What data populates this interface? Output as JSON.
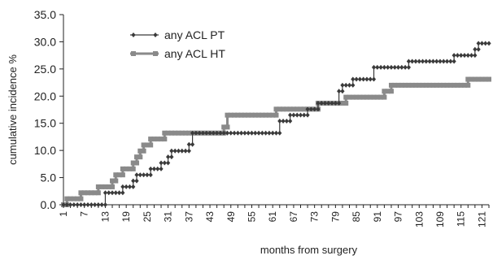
{
  "chart_data": {
    "type": "line",
    "title": "",
    "xlabel": "months from surgery",
    "ylabel": "cumulative incidence %",
    "xlim": [
      1,
      123
    ],
    "ylim": [
      0,
      35
    ],
    "yticks": [
      "0.0",
      "5.0",
      "10.0",
      "15.0",
      "20.0",
      "25.0",
      "30.0",
      "35.0"
    ],
    "xticks": [
      "1",
      "7",
      "13",
      "19",
      "25",
      "31",
      "37",
      "43",
      "49",
      "55",
      "61",
      "67",
      "73",
      "79",
      "85",
      "91",
      "97",
      "103",
      "109",
      "115",
      "121"
    ],
    "grid": false,
    "legend_position": "top-left",
    "series": [
      {
        "name": "any ACL PT",
        "color": "#3a3a3a",
        "marker": "diamond",
        "points": [
          [
            1,
            0.0
          ],
          [
            13,
            0.0
          ],
          [
            13,
            2.2
          ],
          [
            18,
            2.2
          ],
          [
            18,
            3.3
          ],
          [
            21,
            3.3
          ],
          [
            21,
            4.4
          ],
          [
            22,
            4.4
          ],
          [
            22,
            5.5
          ],
          [
            26,
            5.5
          ],
          [
            26,
            6.6
          ],
          [
            29,
            6.6
          ],
          [
            29,
            7.7
          ],
          [
            31,
            7.7
          ],
          [
            31,
            8.8
          ],
          [
            32,
            8.8
          ],
          [
            32,
            9.9
          ],
          [
            37,
            9.9
          ],
          [
            37,
            11.1
          ],
          [
            38,
            11.1
          ],
          [
            38,
            13.2
          ],
          [
            63,
            13.2
          ],
          [
            63,
            15.4
          ],
          [
            66,
            15.4
          ],
          [
            66,
            16.5
          ],
          [
            71,
            16.5
          ],
          [
            71,
            17.6
          ],
          [
            74,
            17.6
          ],
          [
            74,
            18.7
          ],
          [
            80,
            18.7
          ],
          [
            80,
            20.9
          ],
          [
            81,
            20.9
          ],
          [
            81,
            22.0
          ],
          [
            84,
            22.0
          ],
          [
            84,
            23.1
          ],
          [
            90,
            23.1
          ],
          [
            90,
            25.3
          ],
          [
            100,
            25.3
          ],
          [
            100,
            26.4
          ],
          [
            113,
            26.4
          ],
          [
            113,
            27.5
          ],
          [
            119,
            27.5
          ],
          [
            119,
            28.6
          ],
          [
            120,
            28.6
          ],
          [
            120,
            29.7
          ],
          [
            123,
            29.7
          ]
        ]
      },
      {
        "name": "any ACL HT",
        "color": "#8a8a8a",
        "marker": "square",
        "points": [
          [
            1,
            0.0
          ],
          [
            2,
            0.0
          ],
          [
            2,
            1.1
          ],
          [
            6,
            1.1
          ],
          [
            6,
            2.2
          ],
          [
            11,
            2.2
          ],
          [
            11,
            3.3
          ],
          [
            15,
            3.3
          ],
          [
            15,
            4.4
          ],
          [
            16,
            4.4
          ],
          [
            16,
            5.5
          ],
          [
            18,
            5.5
          ],
          [
            18,
            6.6
          ],
          [
            21,
            6.6
          ],
          [
            21,
            7.7
          ],
          [
            22,
            7.7
          ],
          [
            22,
            8.8
          ],
          [
            23,
            8.8
          ],
          [
            23,
            9.9
          ],
          [
            24,
            9.9
          ],
          [
            24,
            11.0
          ],
          [
            26,
            11.0
          ],
          [
            26,
            12.1
          ],
          [
            30,
            12.1
          ],
          [
            30,
            13.2
          ],
          [
            47,
            13.2
          ],
          [
            47,
            14.3
          ],
          [
            48,
            14.3
          ],
          [
            48,
            16.5
          ],
          [
            62,
            16.5
          ],
          [
            62,
            17.6
          ],
          [
            74,
            17.6
          ],
          [
            74,
            18.7
          ],
          [
            82,
            18.7
          ],
          [
            82,
            19.8
          ],
          [
            93,
            19.8
          ],
          [
            93,
            20.9
          ],
          [
            95,
            20.9
          ],
          [
            95,
            22.0
          ],
          [
            117,
            22.0
          ],
          [
            117,
            23.1
          ],
          [
            123,
            23.1
          ]
        ]
      }
    ]
  }
}
